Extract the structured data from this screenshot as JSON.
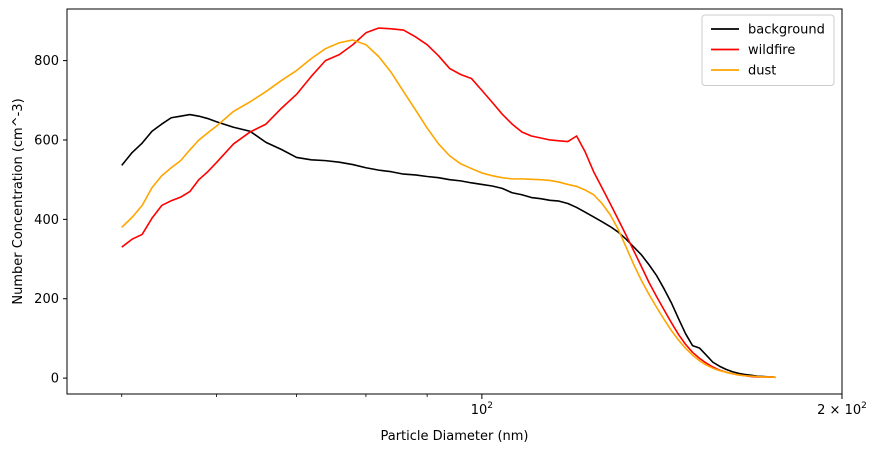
{
  "chart_data": {
    "type": "line",
    "title": "",
    "xlabel": "Particle Diameter (nm)",
    "ylabel": "Number Concentration (cm^-3)",
    "xscale": "log",
    "xlim": [
      45,
      200
    ],
    "ylim": [
      -40,
      930
    ],
    "grid": false,
    "legend": "top-right",
    "x_ticks": [
      {
        "value": 100,
        "label": "10",
        "exp": "2"
      },
      {
        "value": 200,
        "label": "2 × 10",
        "exp": "2"
      }
    ],
    "y_ticks": [
      0,
      200,
      400,
      600,
      800
    ],
    "x": [
      50,
      51,
      52,
      53,
      54,
      55,
      56,
      57,
      58,
      59,
      60,
      62,
      64,
      66,
      68,
      70,
      72,
      74,
      76,
      78,
      80,
      82,
      84,
      86,
      88,
      90,
      92,
      94,
      96,
      98,
      100,
      102,
      104,
      106,
      108,
      110,
      112,
      114,
      116,
      118,
      120,
      122,
      124,
      126,
      128,
      130,
      132,
      134,
      136,
      138,
      140,
      142,
      144,
      146,
      148,
      150,
      152,
      154,
      156,
      158,
      160,
      162,
      164,
      166,
      168,
      170,
      172,
      174,
      176
    ],
    "series": [
      {
        "name": "background",
        "color": "#000000",
        "values": [
          536,
          568,
          592,
          622,
          640,
          656,
          660,
          664,
          660,
          654,
          646,
          632,
          622,
          594,
          576,
          556,
          550,
          548,
          544,
          538,
          530,
          524,
          520,
          514,
          512,
          508,
          505,
          500,
          497,
          492,
          488,
          484,
          478,
          467,
          462,
          455,
          452,
          448,
          446,
          440,
          430,
          418,
          406,
          394,
          382,
          368,
          350,
          330,
          310,
          285,
          258,
          225,
          190,
          150,
          112,
          82,
          76,
          58,
          40,
          30,
          22,
          16,
          12,
          9,
          7,
          5,
          4,
          3,
          2
        ]
      },
      {
        "name": "wildfire",
        "color": "#ff0000",
        "values": [
          330,
          350,
          362,
          403,
          435,
          447,
          456,
          470,
          500,
          520,
          543,
          590,
          620,
          640,
          680,
          715,
          760,
          800,
          815,
          840,
          870,
          882,
          880,
          877,
          860,
          840,
          812,
          780,
          765,
          755,
          725,
          695,
          665,
          640,
          620,
          610,
          605,
          600,
          598,
          596,
          610,
          570,
          520,
          480,
          440,
          400,
          360,
          320,
          280,
          240,
          205,
          172,
          140,
          110,
          85,
          65,
          50,
          38,
          28,
          20,
          15,
          11,
          8,
          6,
          4,
          3,
          3,
          3,
          2
        ]
      },
      {
        "name": "dust",
        "color": "#ffa500",
        "values": [
          380,
          405,
          435,
          480,
          510,
          530,
          548,
          575,
          600,
          618,
          635,
          672,
          696,
          722,
          750,
          775,
          805,
          830,
          845,
          852,
          840,
          810,
          770,
          722,
          676,
          630,
          590,
          560,
          540,
          528,
          517,
          510,
          505,
          502,
          502,
          501,
          500,
          498,
          494,
          488,
          483,
          474,
          462,
          440,
          412,
          375,
          330,
          285,
          245,
          210,
          178,
          148,
          120,
          96,
          75,
          58,
          44,
          33,
          25,
          19,
          15,
          11,
          8,
          6,
          5,
          4,
          3,
          3,
          2
        ]
      }
    ]
  }
}
